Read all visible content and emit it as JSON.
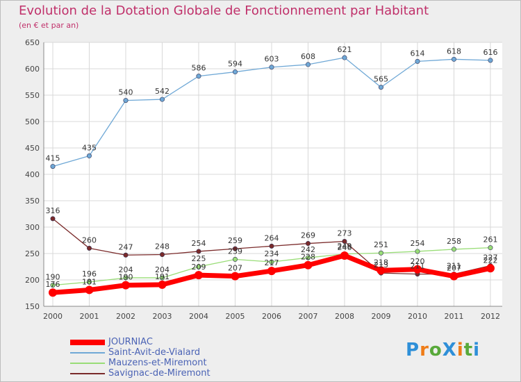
{
  "title": "Evolution de la Dotation Globale de Fonctionnement par Habitant",
  "subtitle": "(en € et par an)",
  "logo": {
    "text": "ProXiti",
    "letters": [
      "P",
      "r",
      "o",
      "X",
      "i",
      "t",
      "i"
    ],
    "colors": [
      "#2e8fd8",
      "#ef7c17",
      "#58a93a",
      "#2e8fd8",
      "#ef7c17",
      "#58a93a",
      "#2e8fd8"
    ]
  },
  "chart_data": {
    "type": "line",
    "title": "Evolution de la Dotation Globale de Fonctionnement par Habitant",
    "subtitle": "(en € et par an)",
    "x": [
      "2000",
      "2001",
      "2002",
      "2003",
      "2004",
      "2005",
      "2006",
      "2007",
      "2008",
      "2009",
      "2010",
      "2011",
      "2012"
    ],
    "ylim": [
      150,
      650
    ],
    "yticks": [
      "150",
      "200",
      "250",
      "300",
      "350",
      "400",
      "450",
      "500",
      "550",
      "600",
      "650"
    ],
    "grid": true,
    "legend_position": "bottom-left",
    "series": [
      {
        "name": "JOURNIAC",
        "color": "#ff0000",
        "values": [
          176,
          181,
          190,
          191,
          209,
          207,
          217,
          228,
          246,
          218,
          220,
          207,
          222
        ],
        "labels": [
          "176",
          "181",
          "190",
          "191",
          "209",
          "207",
          "217",
          "228",
          "246",
          "218",
          "220",
          "207",
          "222"
        ]
      },
      {
        "name": "Saint-Avit-de-Vialard",
        "color": "#6fa8d6",
        "values": [
          415,
          435,
          540,
          542,
          586,
          594,
          603,
          608,
          621,
          565,
          614,
          618,
          616
        ],
        "labels": [
          "415",
          "435",
          "540",
          "542",
          "586",
          "594",
          "603",
          "608",
          "621",
          "565",
          "614",
          "618",
          "616"
        ]
      },
      {
        "name": "Mauzens-et-Miremont",
        "color": "#99dd77",
        "values": [
          190,
          196,
          204,
          204,
          225,
          239,
          234,
          242,
          249,
          251,
          254,
          258,
          261
        ],
        "labels": [
          "190",
          "196",
          "204",
          "204",
          "225",
          "239",
          "234",
          "242",
          "249",
          "251",
          "254",
          "258",
          "261"
        ]
      },
      {
        "name": "Savignac-de-Miremont",
        "color": "#7a2a2a",
        "values": [
          316,
          260,
          247,
          248,
          254,
          259,
          264,
          269,
          273,
          213,
          211,
          211,
          227
        ],
        "labels": [
          "316",
          "260",
          "247",
          "248",
          "254",
          "259",
          "264",
          "269",
          "273",
          "213",
          "211",
          "211",
          "227"
        ]
      }
    ]
  }
}
